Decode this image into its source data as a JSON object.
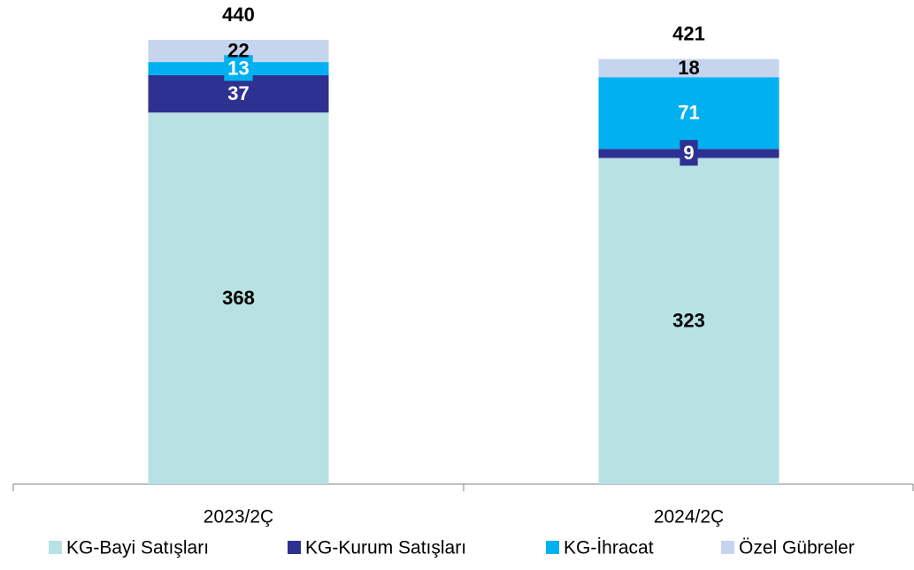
{
  "chart_data": {
    "type": "stacked_bar",
    "categories": [
      "2023/2Ç",
      "2024/2Ç"
    ],
    "series": [
      {
        "name": "KG-Bayi Satışları",
        "color": "#b8e1e3",
        "label_color": "#000000",
        "values": [
          368,
          323
        ]
      },
      {
        "name": "KG-Kurum Satışları",
        "color": "#2e3192",
        "label_color": "#ffffff",
        "values": [
          37,
          9
        ]
      },
      {
        "name": "KG-İhracat",
        "color": "#00b0f0",
        "label_color": "#ffffff",
        "values": [
          13,
          71
        ]
      },
      {
        "name": "Özel Gübreler",
        "color": "#c6d5ee",
        "label_color": "#000000",
        "values": [
          22,
          18
        ]
      }
    ],
    "totals": [
      440,
      421
    ],
    "legend": "bottom"
  }
}
